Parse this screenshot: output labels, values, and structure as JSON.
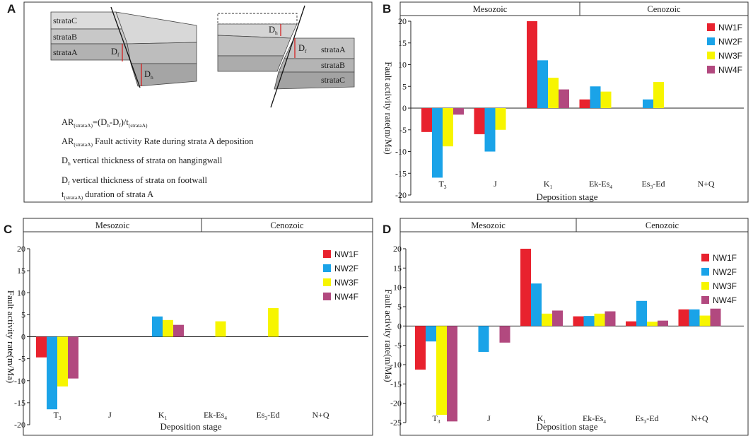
{
  "panel_a": {
    "letter": "A",
    "left_strata": [
      "strataC",
      "strataB",
      "strataA"
    ],
    "right_strata": [
      "strataA",
      "strataB",
      "strataC"
    ],
    "labels": {
      "dh": "D",
      "dh_sub": "h",
      "df": "D",
      "df_sub": "f"
    },
    "formula": {
      "ar": "AR",
      "sub_strata_a": "(strataA)",
      "text_equals": "=(D",
      "h": "h",
      "minus": "-D",
      "f": "f",
      "div_t": ")/t",
      "def_rate": "Fault activity Rate during strata A deposition",
      "dh_def": "vertical thickness of strata on hangingwall",
      "df_def": "vertical thickness of strata on footwall",
      "t": "t",
      "t_def": "duration of strata A"
    }
  },
  "colors": {
    "NW1F": "#e8222e",
    "NW2F": "#1aa3e8",
    "NW3F": "#f7f500",
    "NW4F": "#b2497f"
  },
  "chart_data": [
    {
      "panel": "B",
      "type": "bar",
      "eras": [
        "Mesozoic",
        "Cenozoic"
      ],
      "categories": [
        "T3",
        "J",
        "K1",
        "Ek-Es4",
        "Es3-Ed",
        "N+Q"
      ],
      "category_labels": [
        {
          "base": "T",
          "sub": "3"
        },
        {
          "base": "J",
          "sub": ""
        },
        {
          "base": "K",
          "sub": "1"
        },
        {
          "base": "Ek-Es",
          "sub": "4"
        },
        {
          "base": "Es",
          "sub": "3",
          "tail": "-Ed"
        },
        {
          "base": "N+Q",
          "sub": ""
        }
      ],
      "series": [
        {
          "name": "NW1F",
          "values": [
            -5.5,
            -6,
            20,
            2,
            null,
            null
          ]
        },
        {
          "name": "NW2F",
          "values": [
            -16,
            -10,
            11,
            5,
            2,
            null
          ]
        },
        {
          "name": "NW3F",
          "values": [
            -8.8,
            -5,
            7,
            3.8,
            6,
            null
          ]
        },
        {
          "name": "NW4F",
          "values": [
            -1.5,
            null,
            4.3,
            null,
            null,
            null
          ]
        }
      ],
      "xlabel": "Deposition stage",
      "ylabel": "Fault activity rate(m/Ma)",
      "ylim": [
        -20,
        20
      ],
      "yticks": [
        -20,
        -15,
        -10,
        -5,
        0,
        5,
        10,
        15,
        20
      ],
      "legend": "top-right"
    },
    {
      "panel": "C",
      "type": "bar",
      "eras": [
        "Mesozoic",
        "Cenozoic"
      ],
      "categories": [
        "T3",
        "J",
        "K1",
        "Ek-Es4",
        "Es3-Ed",
        "N+Q"
      ],
      "category_labels": [
        {
          "base": "T",
          "sub": "3"
        },
        {
          "base": "J",
          "sub": ""
        },
        {
          "base": "K",
          "sub": "1"
        },
        {
          "base": "Ek-Es",
          "sub": "4"
        },
        {
          "base": "Es",
          "sub": "3",
          "tail": "-Ed"
        },
        {
          "base": "N+Q",
          "sub": ""
        }
      ],
      "series": [
        {
          "name": "NW1F",
          "values": [
            -4.7,
            null,
            null,
            null,
            null,
            null
          ]
        },
        {
          "name": "NW2F",
          "values": [
            -16.5,
            null,
            4.6,
            null,
            null,
            null
          ]
        },
        {
          "name": "NW3F",
          "values": [
            -11.3,
            null,
            3.8,
            3.5,
            6.5,
            null
          ]
        },
        {
          "name": "NW4F",
          "values": [
            -9.5,
            null,
            2.7,
            null,
            null,
            null
          ]
        }
      ],
      "xlabel": "Deposition stage",
      "ylabel": "Fault activity rate(m/Ma)",
      "ylim": [
        -20,
        20
      ],
      "yticks": [
        -20,
        -15,
        -10,
        -5,
        0,
        5,
        10,
        15,
        20
      ],
      "legend": "top-right"
    },
    {
      "panel": "D",
      "type": "bar",
      "eras": [
        "Mesozoic",
        "Cenozoic"
      ],
      "categories": [
        "T3",
        "J",
        "K1",
        "Ek-Es4",
        "Es3-Ed",
        "N+Q"
      ],
      "category_labels": [
        {
          "base": "T",
          "sub": "3"
        },
        {
          "base": "J",
          "sub": ""
        },
        {
          "base": "K",
          "sub": "1"
        },
        {
          "base": "Ek-Es",
          "sub": "4"
        },
        {
          "base": "Es",
          "sub": "3",
          "tail": "-Ed"
        },
        {
          "base": "N+Q",
          "sub": ""
        }
      ],
      "series": [
        {
          "name": "NW1F",
          "values": [
            -11.3,
            null,
            20,
            2.5,
            1.2,
            4.3
          ]
        },
        {
          "name": "NW2F",
          "values": [
            -4,
            -6.7,
            11,
            2.6,
            6.5,
            4.3
          ]
        },
        {
          "name": "NW3F",
          "values": [
            -23,
            null,
            3.2,
            3.2,
            1.1,
            2.7
          ]
        },
        {
          "name": "NW4F",
          "values": [
            -24.7,
            -4.3,
            4,
            3.8,
            1.4,
            4.5
          ]
        }
      ],
      "xlabel": "Deposition stage",
      "ylabel": "Fault activity rate(m/Ma)",
      "ylim": [
        -25,
        20
      ],
      "yticks": [
        -25,
        -20,
        -15,
        -10,
        -5,
        0,
        5,
        10,
        15,
        20
      ],
      "legend": "top-right"
    }
  ]
}
